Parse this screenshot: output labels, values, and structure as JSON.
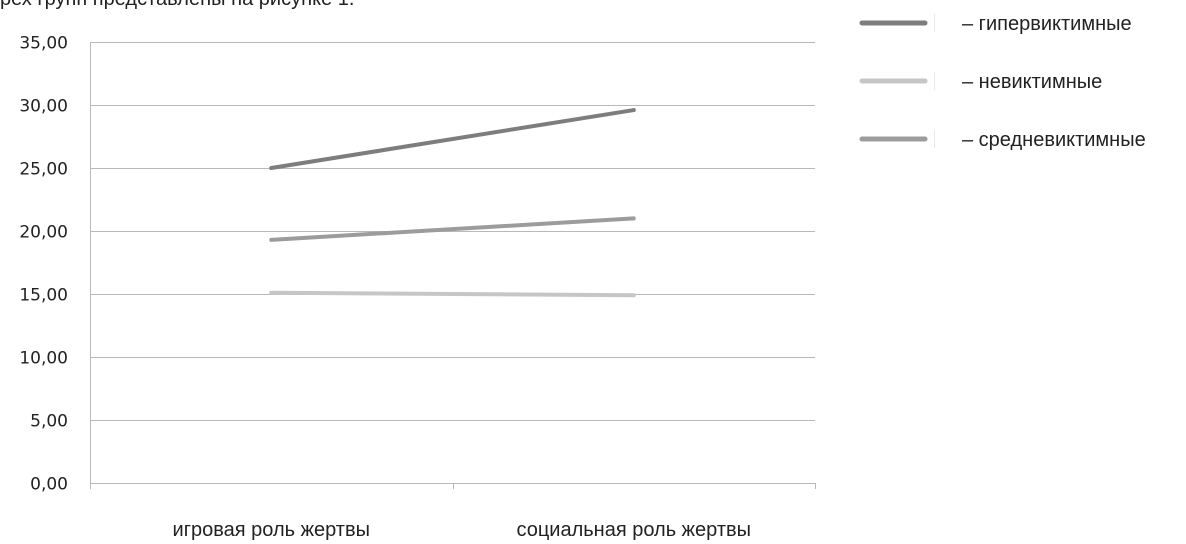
{
  "caption_fragment": "рех групп представлены на рисунке 1.",
  "colors": {
    "hyper": "#7d7d7d",
    "non": "#c6c6c6",
    "medium": "#9c9c9c",
    "grid": "#b9b9b9"
  },
  "chart_data": {
    "type": "line",
    "categories": [
      "игровая роль жертвы",
      "социальная роль жертвы"
    ],
    "series": [
      {
        "name": "– гипервиктимные",
        "values": [
          25.0,
          29.6
        ],
        "color": "#7d7d7d"
      },
      {
        "name": "– невиктимные",
        "values": [
          15.1,
          14.9
        ],
        "color": "#c6c6c6"
      },
      {
        "name": "– средневиктимные",
        "values": [
          19.3,
          21.0
        ],
        "color": "#9c9c9c"
      }
    ],
    "yticks": [
      "35,00",
      "30,00",
      "25,00",
      "20,00",
      "15,00",
      "10,00",
      "5,00",
      "0,00"
    ],
    "ylim": [
      0,
      35
    ],
    "grid": true,
    "legend_position": "top-right"
  }
}
